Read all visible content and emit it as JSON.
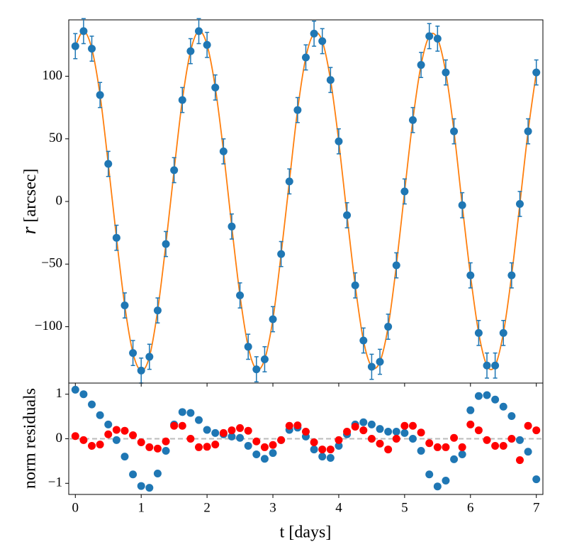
{
  "chart_data": [
    {
      "type": "scatter",
      "ylabel_symbol": "r",
      "ylabel_unit": "[arcsec]",
      "xlim": [
        -0.1,
        7.1
      ],
      "xticks": [
        0,
        1,
        2,
        3,
        4,
        5,
        6,
        7
      ],
      "xtick_labels": false,
      "ylim": [
        -145,
        145
      ],
      "yticks": [
        {
          "value": -100,
          "label": "−100"
        },
        {
          "value": -50,
          "label": "−50"
        },
        0,
        50,
        100
      ],
      "x": [
        0,
        0.125,
        0.25,
        0.375,
        0.5,
        0.625,
        0.75,
        0.875,
        1,
        1.125,
        1.25,
        1.375,
        1.5,
        1.625,
        1.75,
        1.875,
        2,
        2.125,
        2.25,
        2.375,
        2.5,
        2.625,
        2.75,
        2.875,
        3,
        3.125,
        3.25,
        3.375,
        3.5,
        3.625,
        3.75,
        3.875,
        4,
        4.125,
        4.25,
        4.375,
        4.5,
        4.625,
        4.75,
        4.875,
        5,
        5.125,
        5.25,
        5.375,
        5.5,
        5.625,
        5.75,
        5.875,
        6,
        6.125,
        6.25,
        6.375,
        6.5,
        6.625,
        6.75,
        6.875,
        7
      ],
      "series": [
        {
          "style": "line",
          "color": "#ff7f0e",
          "values": [
            124,
            136,
            122,
            85,
            30,
            -29,
            -83,
            -121,
            -135,
            -124,
            -87,
            -34,
            25,
            81,
            120,
            136,
            125,
            91,
            40,
            -20,
            -75,
            -116,
            -134,
            -126,
            -94,
            -42,
            16,
            73,
            115,
            134,
            128,
            97,
            48,
            -11,
            -67,
            -111,
            -132,
            -128,
            -100,
            -51,
            8,
            65,
            109,
            132,
            130,
            103,
            56,
            -3,
            -59,
            -105,
            -131,
            -131,
            -105,
            -59,
            -2,
            56,
            103
          ]
        },
        {
          "style": "points",
          "color": "#1f77b4",
          "values": [
            124,
            136,
            122,
            85,
            30,
            -29,
            -83,
            -121,
            -135,
            -124,
            -87,
            -34,
            25,
            81,
            120,
            136,
            125,
            91,
            40,
            -20,
            -75,
            -116,
            -134,
            -126,
            -94,
            -42,
            16,
            73,
            115,
            134,
            128,
            97,
            48,
            -11,
            -67,
            -111,
            -132,
            -128,
            -100,
            -51,
            8,
            65,
            109,
            132,
            130,
            103,
            56,
            -3,
            -59,
            -105,
            -131,
            -131,
            -105,
            -59,
            -2,
            56,
            103
          ],
          "errors": [
            10,
            10,
            10,
            10,
            10,
            10,
            10,
            10,
            10,
            10,
            10,
            10,
            10,
            10,
            10,
            10,
            10,
            10,
            10,
            10,
            10,
            10,
            10,
            10,
            10,
            10,
            10,
            10,
            10,
            10,
            10,
            10,
            10,
            10,
            10,
            10,
            10,
            10,
            10,
            10,
            10,
            10,
            10,
            10,
            10,
            10,
            10,
            10,
            10,
            10,
            10,
            10,
            10,
            10,
            10,
            10,
            10
          ]
        }
      ]
    },
    {
      "type": "scatter",
      "ylabel": "norm residuals",
      "xlabel": "t [days]",
      "xlim": [
        -0.1,
        7.1
      ],
      "xticks": [
        0,
        1,
        2,
        3,
        4,
        5,
        6,
        7
      ],
      "xtick_labels": true,
      "ylim": [
        -1.25,
        1.25
      ],
      "yticks": [
        {
          "value": -1,
          "label": "−1"
        },
        0,
        1
      ],
      "hline": 0,
      "hline_color": "#bbbbbb",
      "x": [
        0,
        0.125,
        0.25,
        0.375,
        0.5,
        0.625,
        0.75,
        0.875,
        1,
        1.125,
        1.25,
        1.375,
        1.5,
        1.625,
        1.75,
        1.875,
        2,
        2.125,
        2.25,
        2.375,
        2.5,
        2.625,
        2.75,
        2.875,
        3,
        3.125,
        3.25,
        3.375,
        3.5,
        3.625,
        3.75,
        3.875,
        4,
        4.125,
        4.25,
        4.375,
        4.5,
        4.625,
        4.75,
        4.875,
        5,
        5.125,
        5.25,
        5.375,
        5.5,
        5.625,
        5.75,
        5.875,
        6,
        6.125,
        6.25,
        6.375,
        6.5,
        6.625,
        6.75,
        6.875,
        7
      ],
      "series": [
        {
          "style": "points",
          "color": "#1f77b4",
          "values": [
            1.1,
            1.0,
            0.77,
            0.53,
            0.32,
            -0.03,
            -0.4,
            -0.8,
            -1.06,
            -1.1,
            -0.78,
            -0.27,
            0.32,
            0.6,
            0.58,
            0.42,
            0.2,
            0.13,
            0.1,
            0.05,
            0.02,
            -0.16,
            -0.35,
            -0.45,
            -0.32,
            -0.03,
            0.2,
            0.25,
            0.05,
            -0.24,
            -0.4,
            -0.43,
            -0.16,
            0.1,
            0.32,
            0.37,
            0.32,
            0.22,
            0.16,
            0.16,
            0.13,
            0,
            -0.27,
            -0.8,
            -1.07,
            -0.94,
            -0.46,
            -0.35,
            0.64,
            0.96,
            0.98,
            0.88,
            0.72,
            0.51,
            -0.03,
            -0.29,
            -0.91
          ]
        },
        {
          "style": "points",
          "color": "#ff0000",
          "values": [
            0.06,
            -0.03,
            -0.16,
            -0.13,
            0.1,
            0.2,
            0.18,
            0.08,
            -0.08,
            -0.19,
            -0.22,
            -0.06,
            0.29,
            0.29,
            0,
            -0.19,
            -0.18,
            -0.13,
            0.13,
            0.19,
            0.24,
            0.18,
            -0.06,
            -0.19,
            -0.14,
            -0.03,
            0.29,
            0.3,
            0.16,
            -0.08,
            -0.24,
            -0.24,
            -0.03,
            0.16,
            0.27,
            0.19,
            0,
            -0.11,
            -0.24,
            0,
            0.29,
            0.29,
            0.14,
            -0.1,
            -0.19,
            -0.19,
            0.02,
            -0.19,
            0.32,
            0.19,
            -0.03,
            -0.16,
            -0.16,
            0,
            -0.48,
            0.29,
            0.19
          ]
        }
      ]
    }
  ]
}
